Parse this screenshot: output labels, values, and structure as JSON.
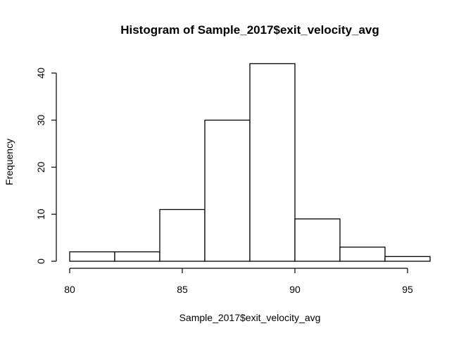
{
  "chart_data": {
    "type": "bar",
    "title": "Histogram of Sample_2017$exit_velocity_avg",
    "xlabel": "Sample_2017$exit_velocity_avg",
    "ylabel": "Frequency",
    "bins": [
      {
        "x0": 80,
        "x1": 82,
        "count": 2
      },
      {
        "x0": 82,
        "x1": 84,
        "count": 2
      },
      {
        "x0": 84,
        "x1": 86,
        "count": 11
      },
      {
        "x0": 86,
        "x1": 88,
        "count": 30
      },
      {
        "x0": 88,
        "x1": 90,
        "count": 42
      },
      {
        "x0": 90,
        "x1": 92,
        "count": 9
      },
      {
        "x0": 92,
        "x1": 94,
        "count": 3
      },
      {
        "x0": 94,
        "x1": 96,
        "count": 1
      }
    ],
    "xlim": [
      80,
      96
    ],
    "ylim": [
      0,
      42
    ],
    "xticks": [
      "80",
      "85",
      "90",
      "95"
    ],
    "yticks": [
      "0",
      "10",
      "20",
      "30",
      "40"
    ],
    "grid": false,
    "bar_fill": "#ffffff",
    "bar_stroke": "#000000"
  }
}
